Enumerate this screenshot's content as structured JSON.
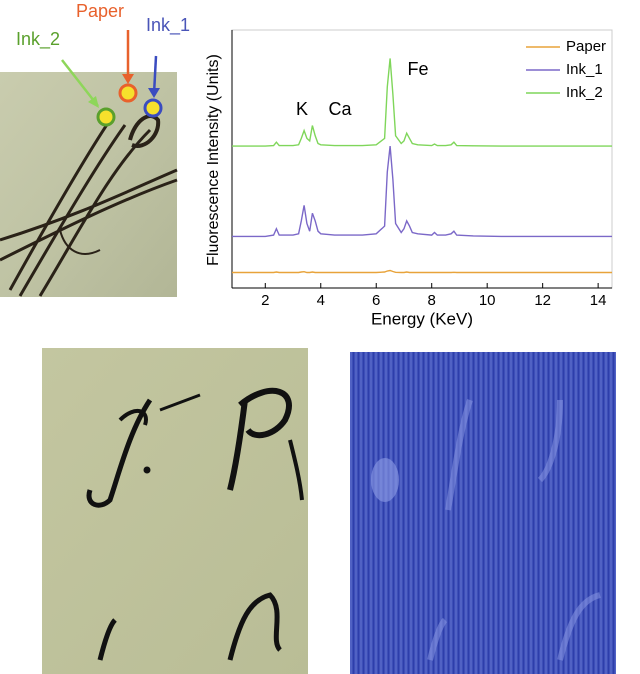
{
  "sample_labels": [
    "Ink_2",
    "Paper",
    "Ink_1"
  ],
  "chart_data": {
    "type": "line",
    "xlabel": "Energy (KeV)",
    "ylabel": "Fluorescence Intensity (Units)",
    "annotations": [
      "K",
      "Ca",
      "Fe"
    ],
    "x": [
      0.8,
      1.5,
      2.0,
      2.3,
      2.4,
      2.5,
      3.0,
      3.2,
      3.3,
      3.4,
      3.5,
      3.6,
      3.7,
      3.8,
      3.9,
      4.0,
      4.5,
      5.0,
      5.5,
      6.0,
      6.3,
      6.4,
      6.5,
      6.6,
      6.7,
      6.9,
      7.0,
      7.1,
      7.2,
      7.3,
      7.5,
      8.0,
      8.1,
      8.2,
      8.5,
      8.7,
      8.8,
      8.9,
      9.5,
      10.5,
      11.5,
      12.5,
      13.5,
      14.5
    ],
    "series": [
      {
        "name": "Paper",
        "color": "#e8a33a",
        "values": [
          0.6,
          0.6,
          0.6,
          0.6,
          0.62,
          0.6,
          0.6,
          0.6,
          0.62,
          0.63,
          0.6,
          0.6,
          0.62,
          0.6,
          0.6,
          0.6,
          0.6,
          0.6,
          0.6,
          0.6,
          0.62,
          0.66,
          0.68,
          0.64,
          0.61,
          0.6,
          0.6,
          0.62,
          0.6,
          0.6,
          0.6,
          0.6,
          0.6,
          0.6,
          0.6,
          0.6,
          0.61,
          0.6,
          0.6,
          0.6,
          0.6,
          0.6,
          0.6,
          0.6
        ]
      },
      {
        "name": "Ink_1",
        "color": "#7b68c8",
        "values": [
          2.0,
          2.0,
          2.0,
          2.05,
          2.3,
          2.05,
          2.05,
          2.1,
          2.6,
          3.2,
          2.5,
          2.2,
          2.9,
          2.6,
          2.2,
          2.1,
          2.05,
          2.05,
          2.05,
          2.1,
          2.4,
          4.5,
          5.5,
          4.2,
          2.5,
          2.15,
          2.3,
          2.6,
          2.4,
          2.15,
          2.1,
          2.05,
          2.15,
          2.05,
          2.05,
          2.1,
          2.2,
          2.05,
          2.02,
          2.0,
          2.0,
          2.0,
          2.0,
          2.0
        ]
      },
      {
        "name": "Ink_2",
        "color": "#7fd65a",
        "values": [
          5.5,
          5.5,
          5.5,
          5.52,
          5.65,
          5.52,
          5.52,
          5.55,
          5.8,
          6.1,
          5.8,
          5.7,
          6.3,
          5.9,
          5.6,
          5.55,
          5.52,
          5.52,
          5.52,
          5.55,
          5.8,
          7.8,
          8.9,
          7.5,
          5.9,
          5.6,
          5.7,
          6.0,
          5.8,
          5.6,
          5.55,
          5.52,
          5.58,
          5.52,
          5.52,
          5.55,
          5.65,
          5.52,
          5.51,
          5.5,
          5.5,
          5.5,
          5.5,
          5.5
        ]
      }
    ],
    "xlim": [
      0.8,
      14.5
    ],
    "xticks": [
      2,
      4,
      6,
      8,
      10,
      12,
      14
    ],
    "ylim": [
      0,
      10
    ],
    "legend": "upper right",
    "grid": false
  }
}
